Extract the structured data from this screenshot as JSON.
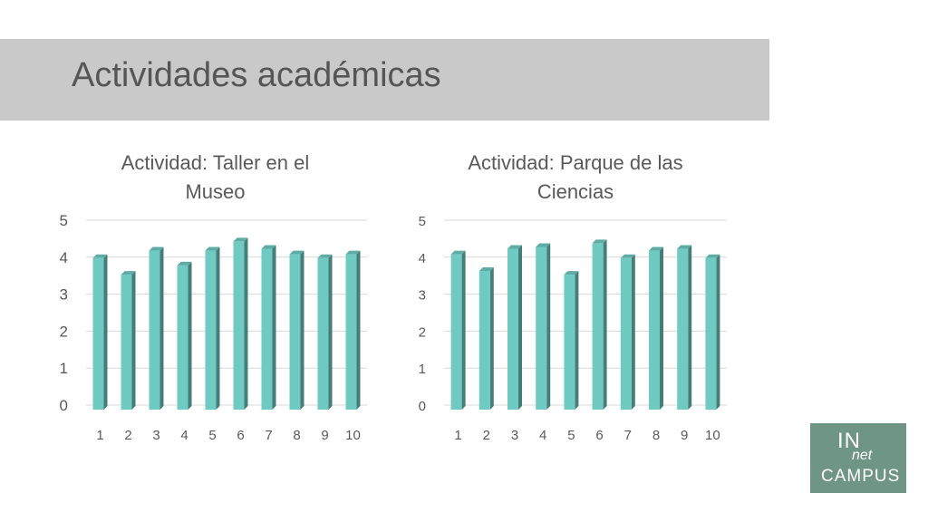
{
  "header": {
    "title": "Actividades académicas"
  },
  "chart_data": [
    {
      "type": "bar",
      "title": "Actividad: Taller en el Museo",
      "title_lines": [
        "Actividad: Taller en el",
        "Museo"
      ],
      "categories": [
        "1",
        "2",
        "3",
        "4",
        "5",
        "6",
        "7",
        "8",
        "9",
        "10"
      ],
      "series": [
        {
          "values": [
            4.1,
            3.65,
            4.3,
            3.9,
            4.3,
            4.55,
            4.35,
            4.2,
            4.1,
            4.2
          ]
        }
      ],
      "ylim": [
        0,
        5
      ],
      "yticks": [
        "0",
        "1",
        "2",
        "3",
        "4",
        "5"
      ],
      "grid": true,
      "bar_color": "#6fcac2"
    },
    {
      "type": "bar",
      "title": "Actividad: Parque de las Ciencias",
      "title_lines": [
        "Actividad: Parque de las",
        "Ciencias"
      ],
      "categories": [
        "1",
        "2",
        "3",
        "4",
        "5",
        "6",
        "7",
        "8",
        "9",
        "10"
      ],
      "series": [
        {
          "values": [
            4.2,
            3.75,
            4.35,
            4.4,
            3.65,
            4.5,
            4.1,
            4.3,
            4.35,
            4.1
          ]
        }
      ],
      "ylim": [
        0,
        5
      ],
      "yticks": [
        "0",
        "1",
        "2",
        "3",
        "4",
        "5"
      ],
      "grid": true,
      "bar_color": "#6fcac2"
    }
  ],
  "logo": {
    "line1": "IN",
    "line2": "net",
    "line3": "CAMPUS"
  }
}
